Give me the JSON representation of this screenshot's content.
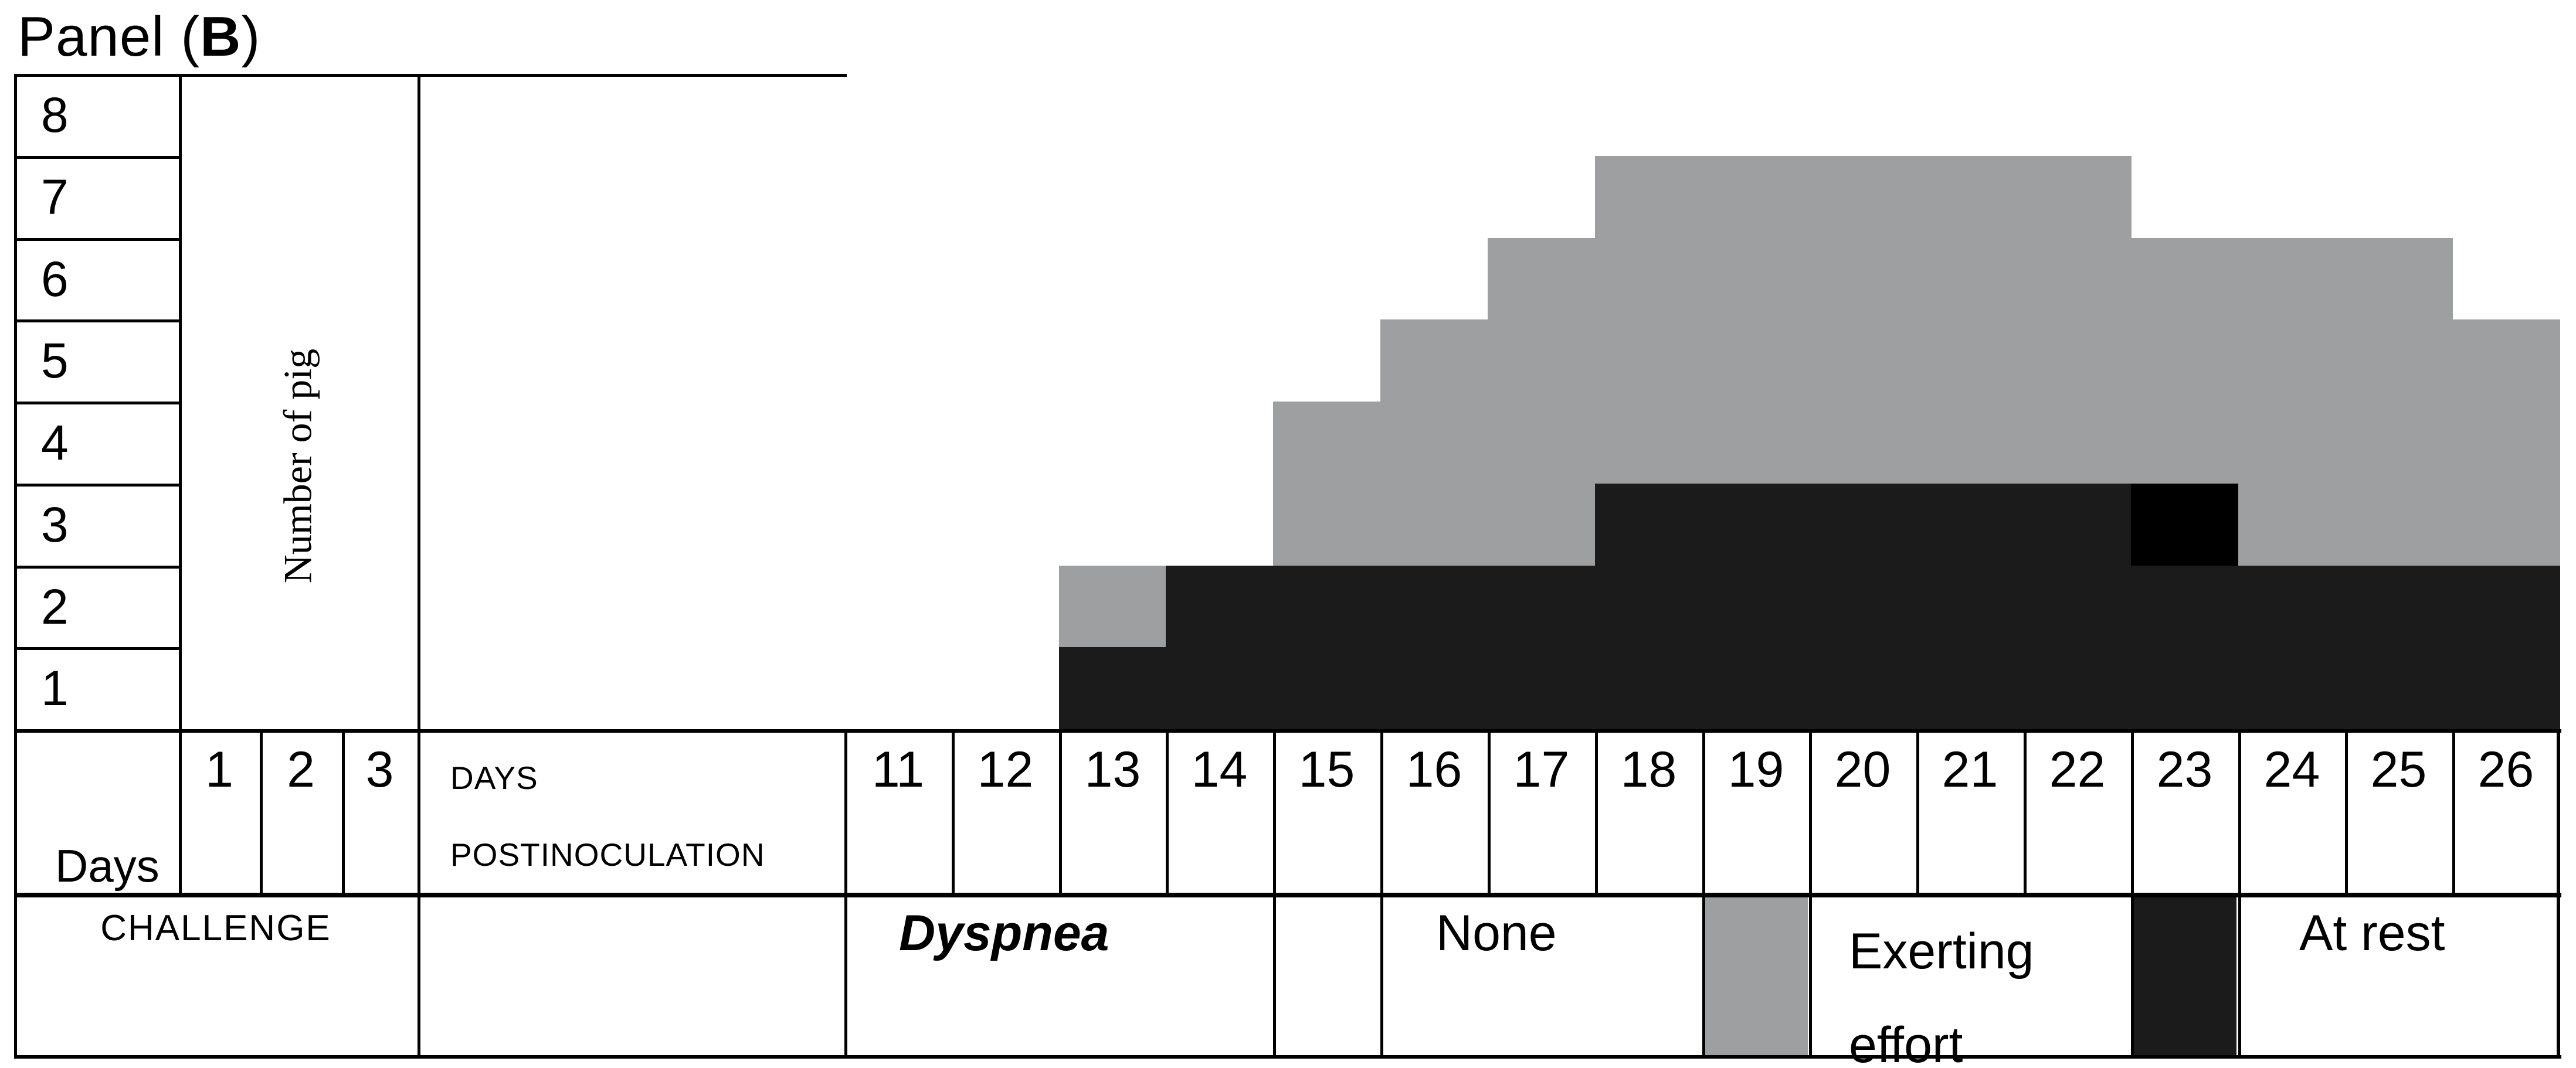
{
  "title": {
    "prefix": "Panel (",
    "bold": "B",
    "suffix": ")"
  },
  "left_table": {
    "axis_label": "Number of pig",
    "pig_numbers": [
      "8",
      "7",
      "6",
      "5",
      "4",
      "3",
      "2",
      "1"
    ]
  },
  "bottom_header": {
    "days_label": "Days",
    "challenge_day_numbers": [
      "1",
      "2",
      "3"
    ],
    "challenge_label": "CHALLENGE",
    "postinoculation_line1": "DAYS",
    "postinoculation_line2": "POSTINOCULATION"
  },
  "legend": {
    "symptom_label": "Dyspnea",
    "none_label": "None",
    "exerting_label_line1": "Exerting",
    "exerting_label_line2": "effort",
    "at_rest_label": "At rest"
  },
  "colors": {
    "none": "#ffffff",
    "exerting": "#9e9fa0",
    "at_rest": "#1b1b1b",
    "at_rest_peak": "#000000",
    "border": "#000000"
  },
  "chart_data": {
    "type": "heatmap",
    "title": "Panel (B)",
    "ylabel": "Number of pig",
    "xlabel": "DAYS POSTINOCULATION",
    "rows": [
      "8",
      "7",
      "6",
      "5",
      "4",
      "3",
      "2",
      "1"
    ],
    "columns": [
      "11",
      "12",
      "13",
      "14",
      "15",
      "16",
      "17",
      "18",
      "19",
      "20",
      "21",
      "22",
      "23",
      "24",
      "25",
      "26"
    ],
    "challenge_columns": [
      "1",
      "2",
      "3"
    ],
    "legend_entries": [
      {
        "label": "None",
        "value": "W",
        "color": "#ffffff"
      },
      {
        "label": "Exerting effort",
        "value": "G",
        "color": "#9e9fa0"
      },
      {
        "label": "At rest",
        "value": "D",
        "color": "#1b1b1b"
      }
    ],
    "value_map": {
      "W": "none",
      "G": "exerting",
      "D": "at_rest",
      "B": "at_rest_peak"
    },
    "cells": [
      "WWWWWWWWWWWWWWWW",
      "WWWWWWWGGGGGWWWW",
      "WWWWWWGGGGGGGGGW",
      "WWWWWGGGGGGGGGGG",
      "WWWWGGGGGGGGGGGG",
      "WWWWGGGDDDDDBGGG",
      "WWGDDDDDDDDDDDDD",
      "WWDDDDDDDDDDDDDD"
    ],
    "notes": "Rows top-to-bottom = pigs 8..1; columns = days postinoculation 11..26; W=none, G=dyspnea when exerting effort, D=dyspnea at rest, B=dyspnea at rest (solid black cell, day 23 pig 3)"
  }
}
